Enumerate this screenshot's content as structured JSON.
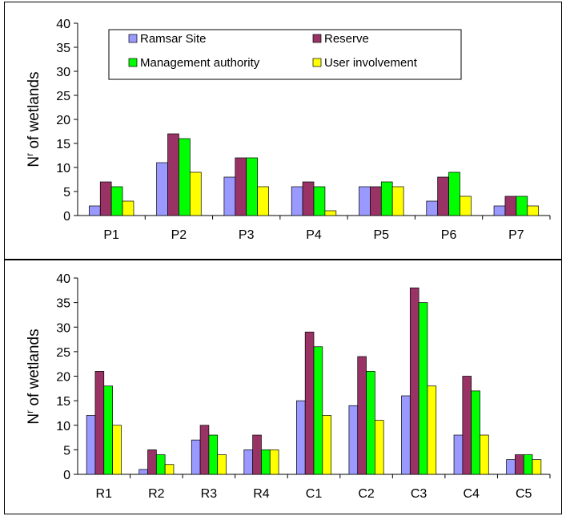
{
  "chart_data": [
    {
      "type": "bar",
      "categories": [
        "P1",
        "P2",
        "P3",
        "P4",
        "P5",
        "P6",
        "P7"
      ],
      "series": [
        {
          "name": "Ramsar Site",
          "values": [
            2,
            11,
            8,
            6,
            6,
            3,
            2
          ]
        },
        {
          "name": "Reserve",
          "values": [
            7,
            17,
            12,
            7,
            6,
            8,
            4
          ]
        },
        {
          "name": "Management authority",
          "values": [
            6,
            16,
            12,
            6,
            7,
            9,
            4
          ]
        },
        {
          "name": "User involvement",
          "values": [
            3,
            9,
            6,
            1,
            6,
            4,
            2
          ]
        }
      ],
      "ylabel_main": "N",
      "ylabel_sup": "r",
      "ylabel_rest": " of wetlands",
      "ylim": [
        0,
        40
      ],
      "yticks": [
        0,
        5,
        10,
        15,
        20,
        25,
        30,
        35,
        40
      ],
      "legend": "inside-top",
      "grid": false
    },
    {
      "type": "bar",
      "categories": [
        "R1",
        "R2",
        "R3",
        "R4",
        "C1",
        "C2",
        "C3",
        "C4",
        "C5"
      ],
      "series": [
        {
          "name": "Ramsar Site",
          "values": [
            12,
            1,
            7,
            5,
            15,
            14,
            16,
            8,
            3
          ]
        },
        {
          "name": "Reserve",
          "values": [
            21,
            5,
            10,
            8,
            29,
            24,
            38,
            20,
            4
          ]
        },
        {
          "name": "Management authority",
          "values": [
            18,
            4,
            8,
            5,
            26,
            21,
            35,
            17,
            4
          ]
        },
        {
          "name": "User involvement",
          "values": [
            10,
            2,
            4,
            5,
            12,
            11,
            18,
            8,
            3
          ]
        }
      ],
      "ylabel_main": "N",
      "ylabel_sup": "r",
      "ylabel_rest": " of wetlands",
      "ylim": [
        0,
        40
      ],
      "yticks": [
        0,
        5,
        10,
        15,
        20,
        25,
        30,
        35,
        40
      ],
      "legend": "none",
      "grid": false
    }
  ],
  "colors": {
    "Ramsar Site": "#9999ff",
    "Reserve": "#993366",
    "Management authority": "#00ff00",
    "User involvement": "#ffff00"
  }
}
